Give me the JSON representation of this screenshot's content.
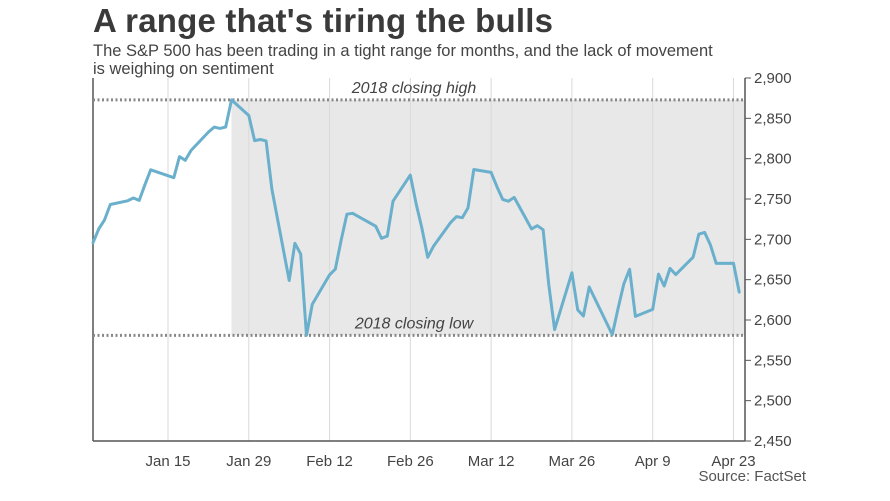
{
  "chart_data": {
    "type": "line",
    "title": "A range that's tiring the bulls",
    "subtitle": "The S&P 500 has been trading in a tight range for months, and the lack of movement is weighing on sentiment",
    "source": "Source: FactSet",
    "xlabel": "",
    "ylabel": "",
    "ylim": [
      2450,
      2900
    ],
    "y_ticks": [
      2450,
      2500,
      2550,
      2600,
      2650,
      2700,
      2750,
      2800,
      2850,
      2900
    ],
    "y_tick_labels": [
      "2,450",
      "2,500",
      "2,550",
      "2,600",
      "2,650",
      "2,700",
      "2,750",
      "2,800",
      "2,850",
      "2,900"
    ],
    "x_ticks": [
      "2018-01-15",
      "2018-01-29",
      "2018-02-12",
      "2018-02-26",
      "2018-03-12",
      "2018-03-26",
      "2018-04-09",
      "2018-04-23"
    ],
    "x_tick_labels": [
      "Jan 15",
      "Jan 29",
      "Feb 12",
      "Feb 26",
      "Mar 12",
      "Mar 26",
      "Apr 9",
      "Apr 23"
    ],
    "xlim": [
      "2018-01-02",
      "2018-04-25"
    ],
    "grid": "vertical",
    "line_color": "#6ab0cc",
    "shade_color": "#e8e8e8",
    "shaded_region": [
      "2018-01-26",
      "2018-04-25"
    ],
    "reference_lines": [
      {
        "label": "2018 closing high",
        "value": 2872.87
      },
      {
        "label": "2018 closing low",
        "value": 2581.0
      }
    ],
    "series": [
      {
        "dates": [
          "2018-01-02",
          "2018-01-03",
          "2018-01-04",
          "2018-01-05",
          "2018-01-08",
          "2018-01-09",
          "2018-01-10",
          "2018-01-11",
          "2018-01-12",
          "2018-01-16",
          "2018-01-17",
          "2018-01-18",
          "2018-01-19",
          "2018-01-22",
          "2018-01-23",
          "2018-01-24",
          "2018-01-25",
          "2018-01-26",
          "2018-01-29",
          "2018-01-30",
          "2018-01-31",
          "2018-02-01",
          "2018-02-02",
          "2018-02-05",
          "2018-02-06",
          "2018-02-07",
          "2018-02-08",
          "2018-02-09",
          "2018-02-12",
          "2018-02-13",
          "2018-02-14",
          "2018-02-15",
          "2018-02-16",
          "2018-02-20",
          "2018-02-21",
          "2018-02-22",
          "2018-02-23",
          "2018-02-26",
          "2018-02-27",
          "2018-02-28",
          "2018-03-01",
          "2018-03-02",
          "2018-03-05",
          "2018-03-06",
          "2018-03-07",
          "2018-03-08",
          "2018-03-09",
          "2018-03-12",
          "2018-03-13",
          "2018-03-14",
          "2018-03-15",
          "2018-03-16",
          "2018-03-19",
          "2018-03-20",
          "2018-03-21",
          "2018-03-22",
          "2018-03-23",
          "2018-03-26",
          "2018-03-27",
          "2018-03-28",
          "2018-03-29",
          "2018-04-02",
          "2018-04-03",
          "2018-04-04",
          "2018-04-05",
          "2018-04-06",
          "2018-04-09",
          "2018-04-10",
          "2018-04-11",
          "2018-04-12",
          "2018-04-13",
          "2018-04-16",
          "2018-04-17",
          "2018-04-18",
          "2018-04-19",
          "2018-04-20",
          "2018-04-23",
          "2018-04-24"
        ],
        "values": [
          2695.81,
          2713.06,
          2723.99,
          2743.15,
          2747.71,
          2751.29,
          2748.23,
          2767.56,
          2786.24,
          2776.42,
          2802.56,
          2798.03,
          2810.3,
          2832.97,
          2839.13,
          2837.54,
          2839.25,
          2872.87,
          2853.53,
          2822.43,
          2823.81,
          2821.98,
          2762.13,
          2648.94,
          2695.14,
          2681.66,
          2581.0,
          2619.55,
          2656.0,
          2662.94,
          2698.63,
          2731.2,
          2732.22,
          2716.26,
          2701.33,
          2703.96,
          2747.3,
          2779.6,
          2744.28,
          2713.83,
          2677.67,
          2691.25,
          2720.94,
          2728.12,
          2726.8,
          2738.97,
          2786.57,
          2783.02,
          2765.31,
          2749.48,
          2747.33,
          2752.01,
          2712.92,
          2716.94,
          2711.93,
          2643.69,
          2588.26,
          2658.55,
          2612.62,
          2605.0,
          2640.87,
          2581.88,
          2614.45,
          2644.69,
          2662.84,
          2604.47,
          2613.16,
          2656.87,
          2642.19,
          2663.99,
          2656.3,
          2677.84,
          2706.39,
          2708.64,
          2693.13,
          2670.14,
          2670.29,
          2634.56
        ]
      }
    ]
  }
}
